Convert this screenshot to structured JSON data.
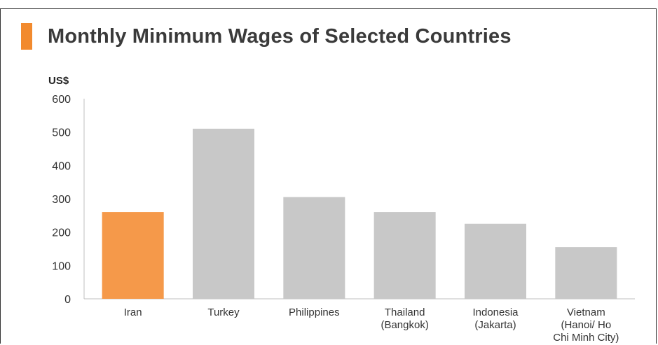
{
  "chart_data": {
    "type": "bar",
    "title": "Monthly Minimum Wages of Selected Countries",
    "unit_label": "US$",
    "categories": [
      [
        "Iran"
      ],
      [
        "Turkey"
      ],
      [
        "Philippines"
      ],
      [
        "Thailand",
        "(Bangkok)"
      ],
      [
        "Indonesia",
        "(Jakarta)"
      ],
      [
        "Vietnam",
        "(Hanoi/ Ho",
        "Chi Minh City)"
      ]
    ],
    "values": [
      260,
      510,
      305,
      260,
      225,
      155
    ],
    "bar_colors": [
      "#f5994a",
      "#c8c8c8",
      "#c8c8c8",
      "#c8c8c8",
      "#c8c8c8",
      "#c8c8c8"
    ],
    "yticks": [
      0,
      100,
      200,
      300,
      400,
      500,
      600
    ],
    "ylim": [
      0,
      600
    ],
    "grid": false,
    "colors": {
      "accent": "#f28a2e",
      "highlight": "#f5994a",
      "bar": "#c8c8c8"
    }
  }
}
